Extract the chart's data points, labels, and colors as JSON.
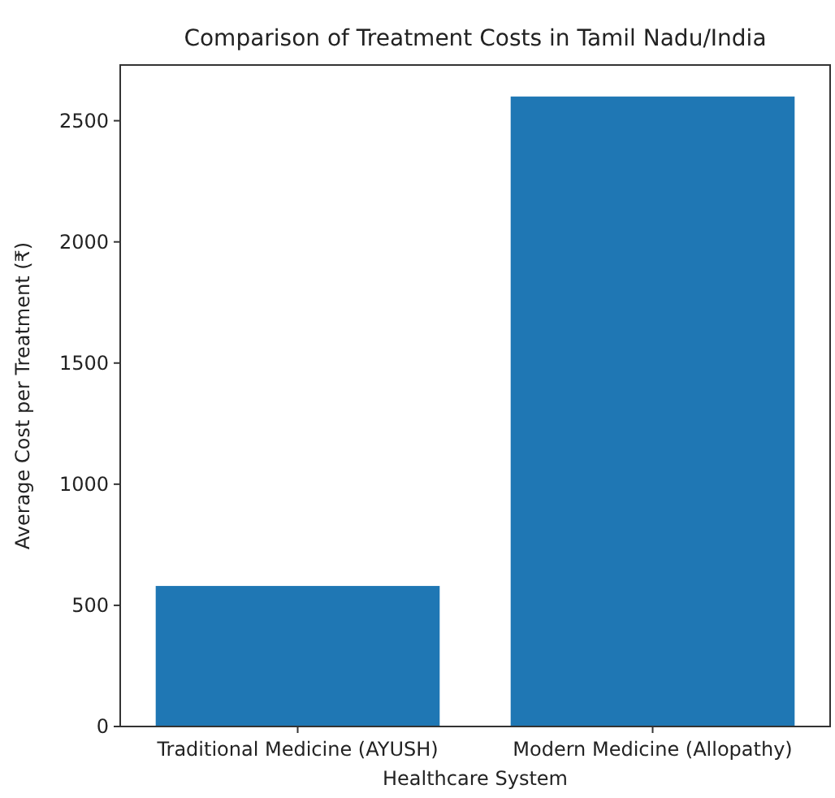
{
  "chart_data": {
    "type": "bar",
    "title": "Comparison of Treatment Costs in Tamil Nadu/India",
    "xlabel": "Healthcare System",
    "ylabel": "Average Cost per Treatment (₹)",
    "categories": [
      "Traditional Medicine (AYUSH)",
      "Modern Medicine (Allopathy)"
    ],
    "values": [
      580,
      2600
    ],
    "color": "#1f77b4",
    "ylim": [
      0,
      2730
    ],
    "yticks": [
      0,
      500,
      1000,
      1500,
      2000,
      2500
    ],
    "grid": false
  }
}
